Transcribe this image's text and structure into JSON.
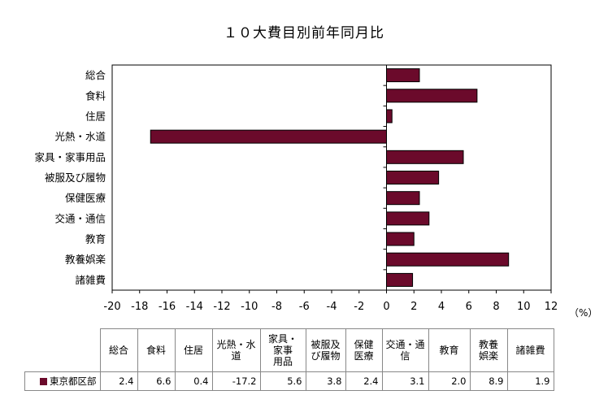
{
  "chart_data": {
    "type": "bar",
    "orientation": "horizontal",
    "title": "１０大費目別前年同月比",
    "unit": "（%）",
    "categories": [
      "総合",
      "食料",
      "住居",
      "光熱・水道",
      "家具・家事用品",
      "被服及び履物",
      "保健医療",
      "交通・通信",
      "教育",
      "教養娯楽",
      "諸雑費"
    ],
    "series": [
      {
        "name": "東京都区部",
        "color": "#6b0a2b",
        "values": [
          2.4,
          6.6,
          0.4,
          -17.2,
          5.6,
          3.8,
          2.4,
          3.1,
          2.0,
          8.9,
          1.9
        ]
      }
    ],
    "xlim": [
      -20,
      12
    ],
    "xticks": [
      "-20",
      "-18",
      "-16",
      "-14",
      "-12",
      "-10",
      "-8",
      "-6",
      "-4",
      "-2",
      "0",
      "2",
      "4",
      "6",
      "8",
      "10",
      "12"
    ],
    "grid": false,
    "table": {
      "headers": [
        [
          "総合"
        ],
        [
          "食料"
        ],
        [
          "住居"
        ],
        [
          "光熱・水",
          "道"
        ],
        [
          "家具・",
          "家事",
          "用品"
        ],
        [
          "被服及",
          "び履物"
        ],
        [
          "保健",
          "医療"
        ],
        [
          "交通・通",
          "信"
        ],
        [
          "教育"
        ],
        [
          "教養",
          "娯楽"
        ],
        [
          "諸雑費"
        ]
      ],
      "values": [
        "2.4",
        "6.6",
        "0.4",
        "-17.2",
        "5.6",
        "3.8",
        "2.4",
        "3.1",
        "2.0",
        "8.9",
        "1.9"
      ]
    }
  }
}
